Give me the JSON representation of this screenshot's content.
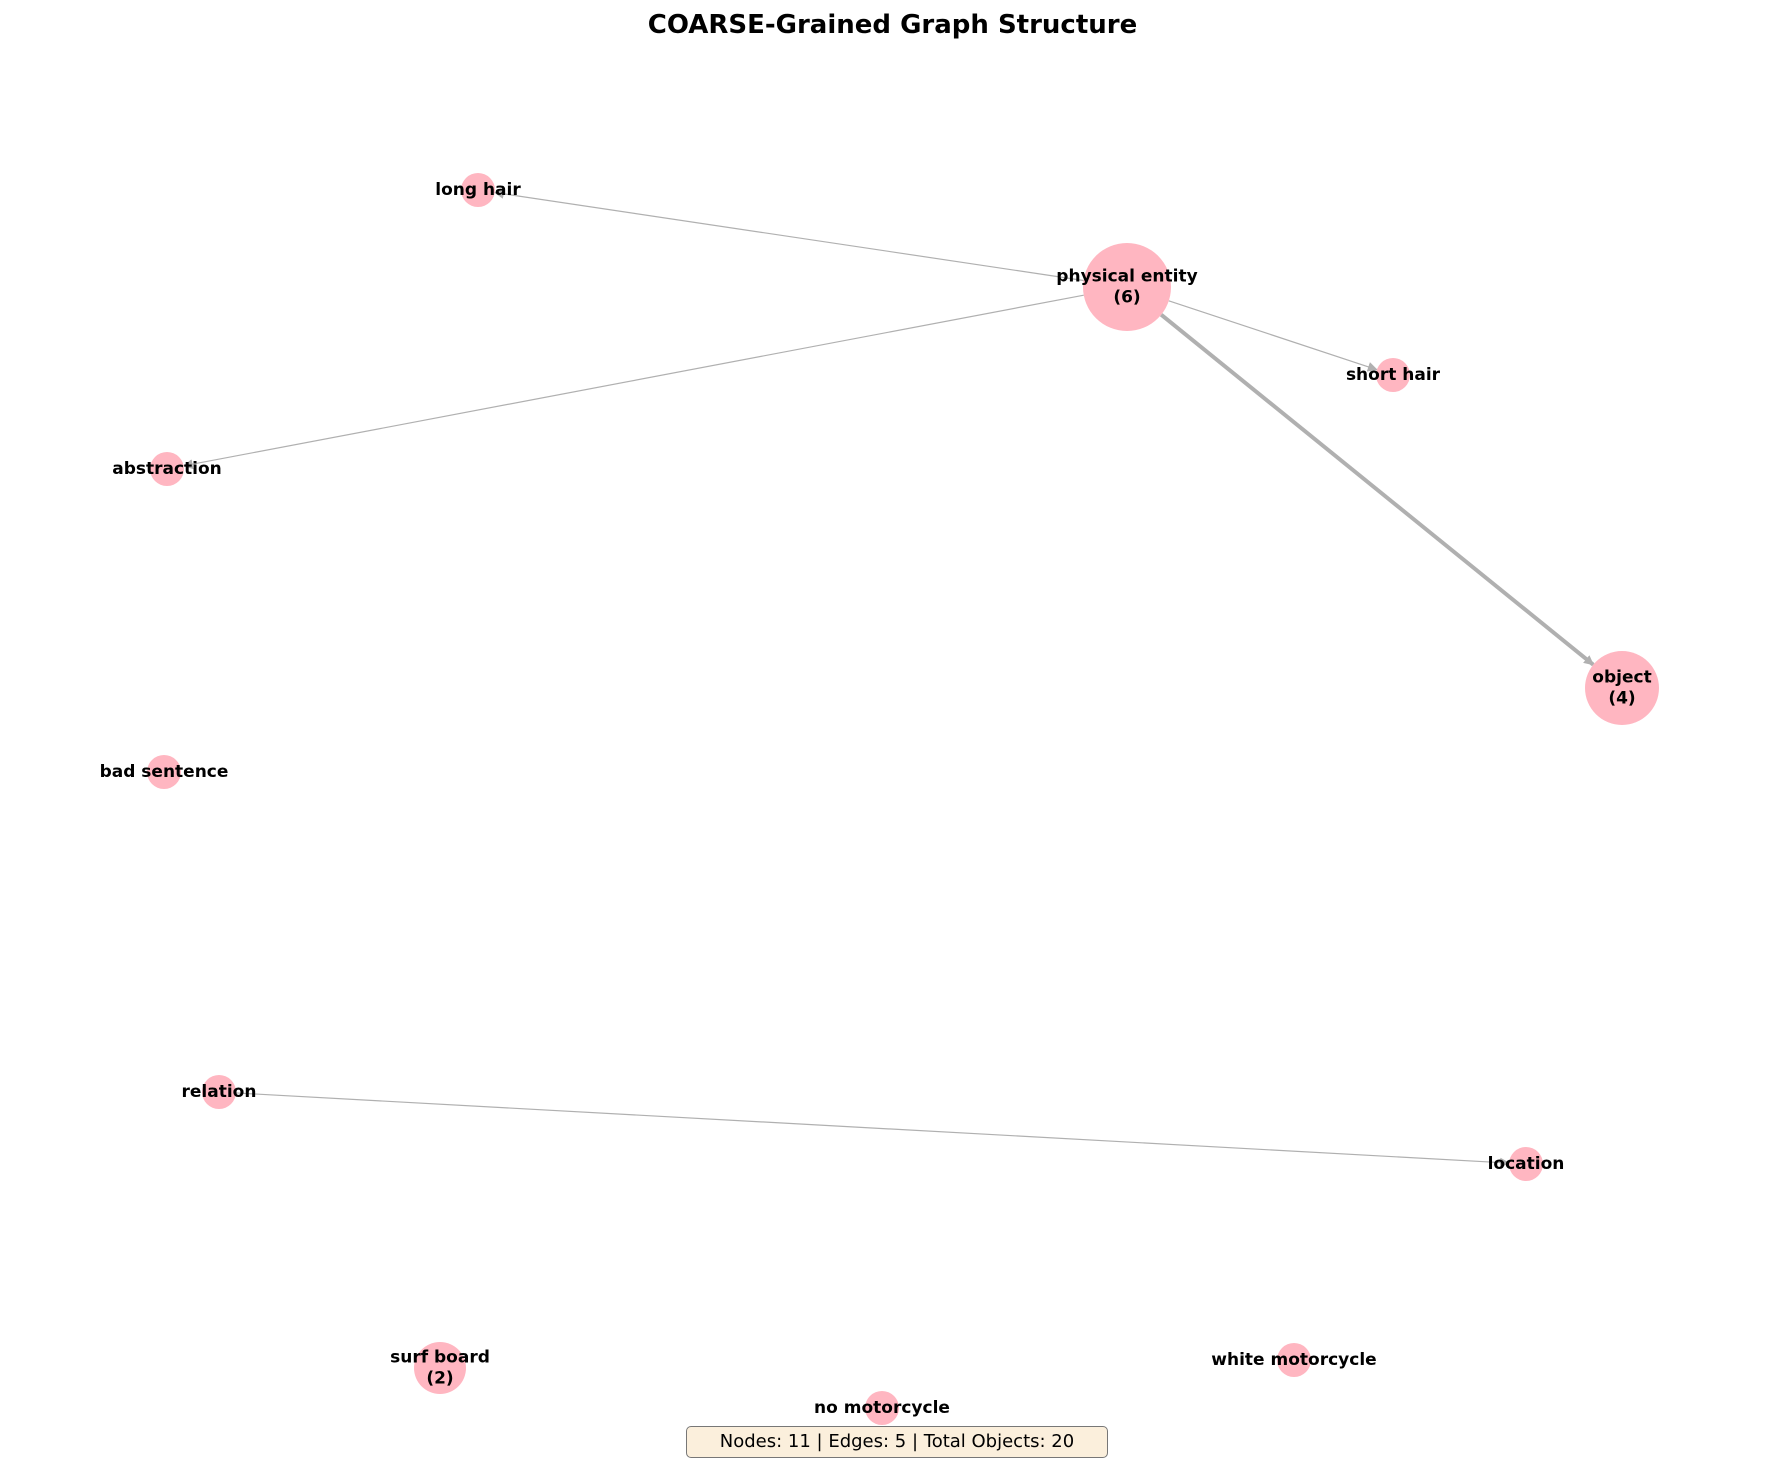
{
  "title": "COARSE-Grained Graph Structure",
  "stats": "Nodes: 11 | Edges: 5 | Total Objects: 20",
  "colors": {
    "node": "#ffb6c1",
    "edge": "#b0b0b0",
    "stats_bg": "#fbefdc"
  },
  "nodes": [
    {
      "id": "physical_entity",
      "lines": [
        "physical entity",
        "(6)"
      ]
    },
    {
      "id": "long_hair",
      "lines": [
        "long hair"
      ]
    },
    {
      "id": "short_hair",
      "lines": [
        "short hair"
      ]
    },
    {
      "id": "abstraction",
      "lines": [
        "abstraction"
      ]
    },
    {
      "id": "object",
      "lines": [
        "object",
        "(4)"
      ]
    },
    {
      "id": "bad_sentence",
      "lines": [
        "bad sentence"
      ]
    },
    {
      "id": "relation",
      "lines": [
        "relation"
      ]
    },
    {
      "id": "location",
      "lines": [
        "location"
      ]
    },
    {
      "id": "surf_board",
      "lines": [
        "surf board",
        "(2)"
      ]
    },
    {
      "id": "white_motorcycle",
      "lines": [
        "white motorcycle"
      ]
    },
    {
      "id": "no_motorcycle",
      "lines": [
        "no motorcycle"
      ]
    }
  ],
  "edges": [
    {
      "from": "physical_entity",
      "to": "long_hair",
      "weight": 1
    },
    {
      "from": "physical_entity",
      "to": "short_hair",
      "weight": 1
    },
    {
      "from": "physical_entity",
      "to": "abstraction",
      "weight": 1
    },
    {
      "from": "physical_entity",
      "to": "object",
      "weight": 3
    },
    {
      "from": "relation",
      "to": "location",
      "weight": 1
    }
  ]
}
